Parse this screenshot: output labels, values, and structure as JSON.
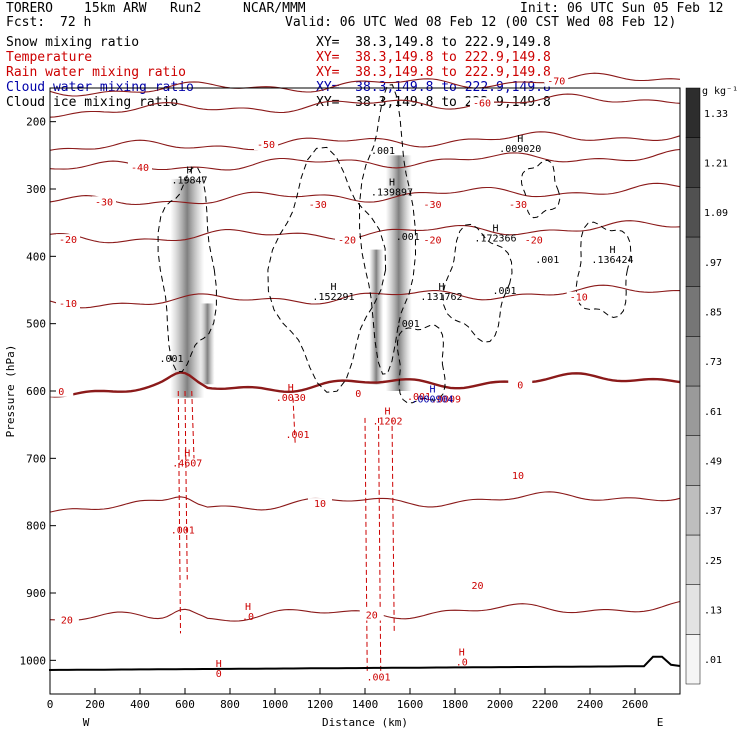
{
  "header": {
    "model": "TORERO",
    "resolution": "15km ARW",
    "run": "Run2",
    "org": "NCAR/MMM",
    "init": "Init: 06 UTC Sun 05 Feb 12",
    "fcst": "Fcst:",
    "fcst_hours": "72 h",
    "valid": "Valid: 06 UTC Wed 08 Feb 12 (00 CST Wed 08 Feb 12)"
  },
  "fields": [
    {
      "name": "Snow mixing ratio",
      "xy": "XY=  38.3,149.8 to 222.9,149.8",
      "color": "#000000"
    },
    {
      "name": "Temperature",
      "xy": "XY=  38.3,149.8 to 222.9,149.8",
      "color": "#cc0000"
    },
    {
      "name": "Rain water mixing ratio",
      "xy": "XY=  38.3,149.8 to 222.9,149.8",
      "color": "#cc0000"
    },
    {
      "name": "Cloud water mixing ratio",
      "xy": "XY=  38.3,149.8 to 222.9,149.8",
      "color": "#0000aa"
    },
    {
      "name": "Cloud ice mixing ratio",
      "xy": "XY=  38.3,149.8 to 222.9,149.8",
      "color": "#000000"
    }
  ],
  "chart_data": {
    "type": "heatmap",
    "xlabel": "Distance (km)",
    "ylabel": "Pressure (hPa)",
    "xlim": [
      0,
      2800
    ],
    "ylim": [
      1050,
      150
    ],
    "xticks": [
      0,
      200,
      400,
      600,
      800,
      1000,
      1200,
      1400,
      1600,
      1800,
      2000,
      2200,
      2400,
      2600
    ],
    "yticks": [
      200,
      300,
      400,
      500,
      600,
      700,
      800,
      900,
      1000
    ],
    "west_label": "W",
    "east_label": "E",
    "colorbar": {
      "unit": "g kg⁻¹",
      "ticks": [
        ".01",
        ".13",
        ".25",
        ".37",
        ".49",
        ".61",
        ".73",
        ".85",
        ".97",
        "1.09",
        "1.21",
        "1.33"
      ]
    },
    "isotherms": [
      {
        "label": "-70",
        "p": 155,
        "lx": 2250
      },
      {
        "label": "-60",
        "p": 185,
        "lx": 1920
      },
      {
        "label": "-50",
        "p": 240,
        "lx": 960
      },
      {
        "label": "-40",
        "p": 270,
        "lx": 400
      },
      {
        "label": "-30",
        "p": 320,
        "lx": 240
      },
      {
        "label": "-20",
        "p": 375,
        "lx": 80
      },
      {
        "label": "-10",
        "p": 470,
        "lx": 80
      },
      {
        "label": "0",
        "p": 600,
        "lx": 50
      },
      {
        "label": "10",
        "p": 775,
        "lx": 1200
      },
      {
        "label": "20",
        "p": 940,
        "lx": 75
      }
    ],
    "isotherm_labels": [
      {
        "text": "-30",
        "x": 1190,
        "p": 322
      },
      {
        "text": "-30",
        "x": 1700,
        "p": 322
      },
      {
        "text": "-30",
        "x": 2080,
        "p": 322
      },
      {
        "text": "-20",
        "x": 1320,
        "p": 375
      },
      {
        "text": "-20",
        "x": 1700,
        "p": 375
      },
      {
        "text": "-20",
        "x": 2150,
        "p": 375
      },
      {
        "text": "-10",
        "x": 2350,
        "p": 460
      },
      {
        "text": "0",
        "x": 1370,
        "p": 603
      },
      {
        "text": "0",
        "x": 2090,
        "p": 590
      },
      {
        "text": "10",
        "x": 2080,
        "p": 725
      },
      {
        "text": "20",
        "x": 1900,
        "p": 888
      },
      {
        "text": "20",
        "x": 1430,
        "p": 932
      }
    ],
    "snow_maxima": [
      {
        "text": ".19847",
        "x": 620,
        "p": 292,
        "h": true
      },
      {
        "text": ".139897",
        "x": 1520,
        "p": 310,
        "h": true
      },
      {
        "text": ".009020",
        "x": 2090,
        "p": 245,
        "h": true
      },
      {
        "text": ".172366",
        "x": 1980,
        "p": 378,
        "h": true
      },
      {
        "text": ".136424",
        "x": 2500,
        "p": 410,
        "h": true
      },
      {
        "text": ".152291",
        "x": 1260,
        "p": 465,
        "h": true
      },
      {
        "text": ".131762",
        "x": 1740,
        "p": 465,
        "h": true
      },
      {
        "text": ".001",
        "x": 1480,
        "p": 248,
        "h": false
      },
      {
        "text": ".001",
        "x": 1590,
        "p": 376,
        "h": false
      },
      {
        "text": ".001",
        "x": 2210,
        "p": 410,
        "h": false
      },
      {
        "text": ".001",
        "x": 2020,
        "p": 456,
        "h": false
      },
      {
        "text": ".001",
        "x": 1590,
        "p": 505,
        "h": false
      },
      {
        "text": ".001",
        "x": 540,
        "p": 557,
        "h": false
      }
    ],
    "rain_maxima": [
      {
        "text": ".4607",
        "x": 610,
        "p": 712,
        "h": true
      },
      {
        "text": ".1202",
        "x": 1500,
        "p": 650,
        "h": true
      },
      {
        "text": ".0030",
        "x": 1070,
        "p": 615,
        "h": true
      },
      {
        "text": ".001",
        "x": 1100,
        "p": 670,
        "h": false
      },
      {
        "text": ".001",
        "x": 590,
        "p": 812,
        "h": false
      },
      {
        "text": ".0",
        "x": 880,
        "p": 940,
        "h": true
      },
      {
        "text": "0",
        "x": 750,
        "p": 1025,
        "h": true
      },
      {
        "text": ".0",
        "x": 1830,
        "p": 1008,
        "h": true
      },
      {
        "text": ".001",
        "x": 1460,
        "p": 1030,
        "h": false
      },
      {
        "text": ".001",
        "x": 1640,
        "p": 613,
        "h": false
      },
      {
        "text": ".0009",
        "x": 1760,
        "p": 617,
        "h": false
      }
    ],
    "cloud_water_maxima": [
      {
        "text": ".000904",
        "x": 1700,
        "p": 617,
        "h": true
      }
    ],
    "snow_shafts": [
      {
        "x": 610,
        "p_top": 285,
        "p_bot": 610,
        "w": 34
      },
      {
        "x": 1550,
        "p_top": 250,
        "p_bot": 600,
        "w": 26
      },
      {
        "x": 1450,
        "p_top": 390,
        "p_bot": 590,
        "w": 14
      },
      {
        "x": 700,
        "p_top": 470,
        "p_bot": 590,
        "w": 14
      }
    ]
  }
}
